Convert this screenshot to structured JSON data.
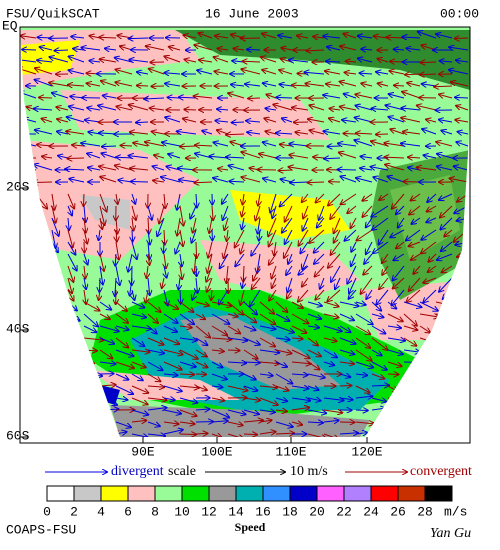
{
  "header": {
    "left": "FSU/QuikSCAT",
    "date": "16 June 2003",
    "time": "00:00"
  },
  "map": {
    "lat_labels": [
      "EQ",
      "20S",
      "40S",
      "60S"
    ],
    "lon_labels": [
      "90E",
      "100E",
      "110E",
      "120E"
    ]
  },
  "legend": {
    "divergent": "divergent",
    "scale": "scale",
    "scale_value": "10 m/s",
    "convergent": "convergent"
  },
  "colorbar": {
    "ticks": [
      0,
      2,
      4,
      6,
      8,
      10,
      12,
      14,
      16,
      18,
      20,
      22,
      24,
      26,
      28
    ],
    "unit": "m/s",
    "label": "Speed",
    "colors": [
      "#ffffff",
      "#c8c8c8",
      "#ffff00",
      "#ffc0c0",
      "#98fb98",
      "#00e000",
      "#999999",
      "#00b0b0",
      "#3090ff",
      "#0000c8",
      "#ff60ff",
      "#b080ff",
      "#ff0000",
      "#c83000",
      "#000000"
    ]
  },
  "footer": {
    "left": "COAPS-FSU",
    "right": "Yan Gu"
  }
}
